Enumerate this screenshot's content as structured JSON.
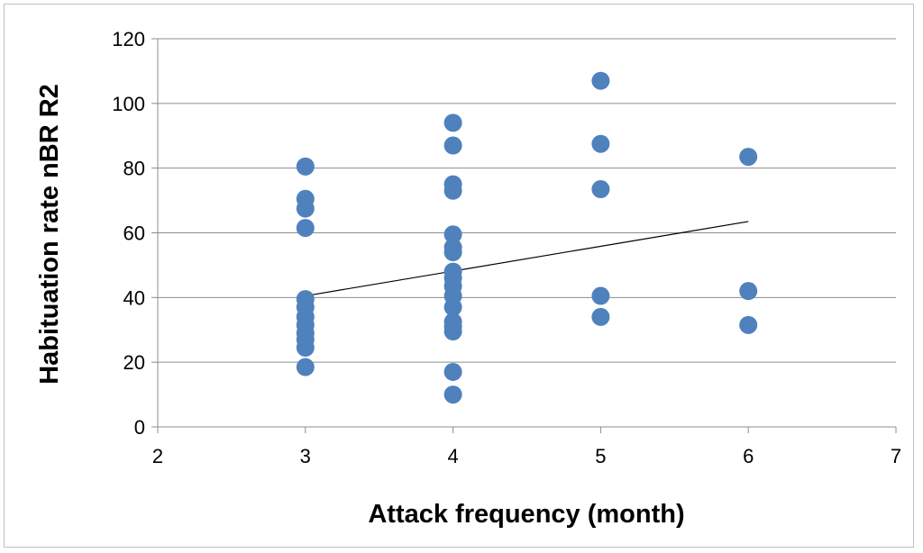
{
  "chart_data": {
    "type": "scatter",
    "title": "",
    "xlabel": "Attack frequency (month)",
    "ylabel": "Habituation rate nBR R2",
    "xlim": [
      2,
      7
    ],
    "ylim": [
      0,
      120
    ],
    "x_ticks": [
      "2",
      "3",
      "4",
      "5",
      "6",
      "7"
    ],
    "y_ticks": [
      "0",
      "20",
      "40",
      "60",
      "80",
      "100",
      "120"
    ],
    "grid": "horizontal",
    "legend": "none",
    "marker_color": "#4f81bd",
    "trendline_color": "#000000",
    "points": [
      {
        "x": 3,
        "y": 80.5
      },
      {
        "x": 3,
        "y": 70.5
      },
      {
        "x": 3,
        "y": 67.5
      },
      {
        "x": 3,
        "y": 61.5
      },
      {
        "x": 3,
        "y": 39.5
      },
      {
        "x": 3,
        "y": 37
      },
      {
        "x": 3,
        "y": 34
      },
      {
        "x": 3,
        "y": 31.5
      },
      {
        "x": 3,
        "y": 29
      },
      {
        "x": 3,
        "y": 27
      },
      {
        "x": 3,
        "y": 24.5
      },
      {
        "x": 3,
        "y": 18.5
      },
      {
        "x": 4,
        "y": 94
      },
      {
        "x": 4,
        "y": 87
      },
      {
        "x": 4,
        "y": 75
      },
      {
        "x": 4,
        "y": 73
      },
      {
        "x": 4,
        "y": 59.5
      },
      {
        "x": 4,
        "y": 55.5
      },
      {
        "x": 4,
        "y": 54
      },
      {
        "x": 4,
        "y": 48
      },
      {
        "x": 4,
        "y": 46
      },
      {
        "x": 4,
        "y": 43.5
      },
      {
        "x": 4,
        "y": 40.5
      },
      {
        "x": 4,
        "y": 37
      },
      {
        "x": 4,
        "y": 32.5
      },
      {
        "x": 4,
        "y": 31
      },
      {
        "x": 4,
        "y": 29.5
      },
      {
        "x": 4,
        "y": 17
      },
      {
        "x": 4,
        "y": 10
      },
      {
        "x": 5,
        "y": 107
      },
      {
        "x": 5,
        "y": 87.5
      },
      {
        "x": 5,
        "y": 73.5
      },
      {
        "x": 5,
        "y": 40.5
      },
      {
        "x": 5,
        "y": 34
      },
      {
        "x": 6,
        "y": 83.5
      },
      {
        "x": 6,
        "y": 42
      },
      {
        "x": 6,
        "y": 31.5
      }
    ],
    "trendline": {
      "x": [
        3,
        6
      ],
      "y": [
        40.5,
        63.5
      ]
    }
  }
}
